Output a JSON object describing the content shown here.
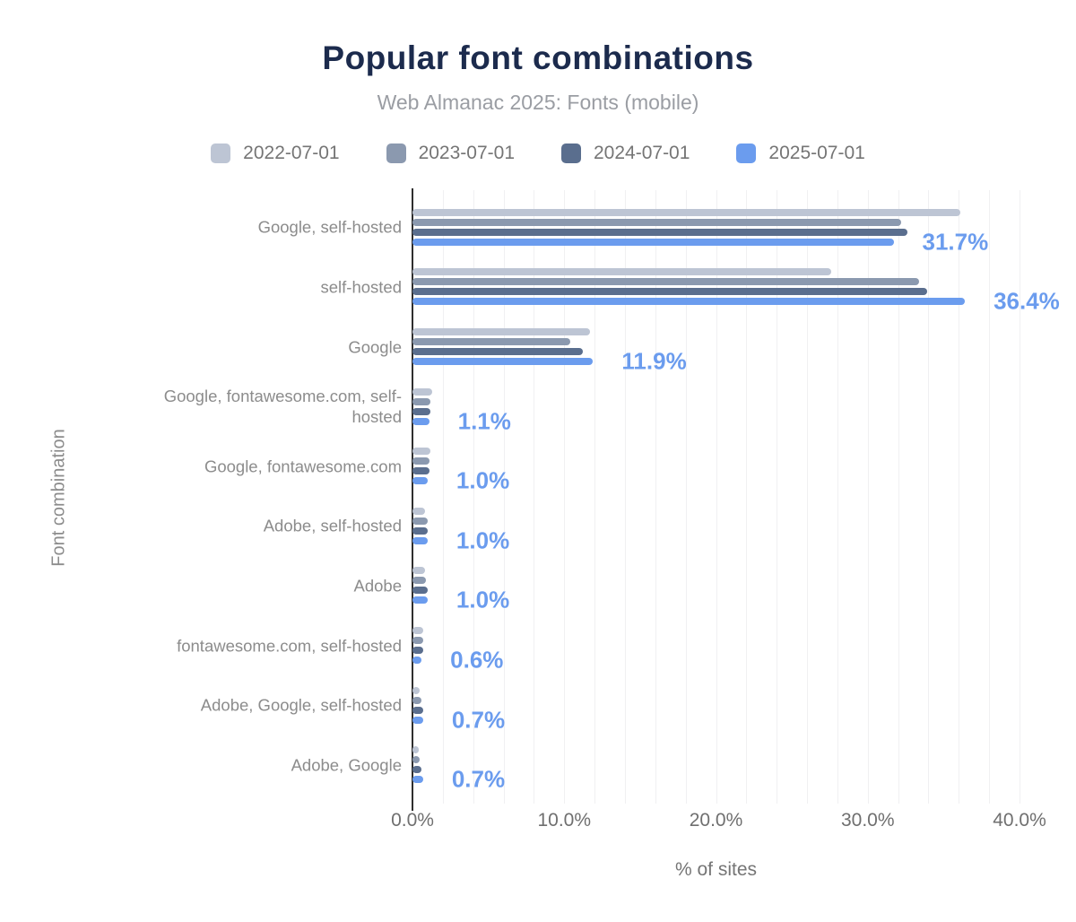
{
  "title": "Popular font combinations",
  "subtitle": "Web Almanac 2025: Fonts (mobile)",
  "colors": {
    "title_text": "#1c2b4d",
    "subtitle_text": "#9a9da3",
    "axis_text": "#757575",
    "category_text": "#8c8c8c",
    "data_label_blue": "#6b9cee",
    "axis_line": "#2e2e2e",
    "gridline": "#f0f0f2"
  },
  "chart_data": {
    "type": "bar",
    "orientation": "horizontal",
    "title": "Popular font combinations",
    "subtitle": "Web Almanac 2025: Fonts (mobile)",
    "xlabel": "% of sites",
    "ylabel": "Font combination",
    "xlim": [
      0,
      40
    ],
    "x_tick_values": [
      0,
      10,
      20,
      30,
      40
    ],
    "x_tick_labels": [
      "0.0%",
      "10.0%",
      "20.0%",
      "30.0%",
      "40.0%"
    ],
    "grid": "vertical lines every 2%",
    "legend_position": "top",
    "categories": [
      "Google, self-hosted",
      "self-hosted",
      "Google",
      "Google, fontawesome.com, self-hosted",
      "Google, fontawesome.com",
      "Adobe, self-hosted",
      "Adobe",
      "fontawesome.com, self-hosted",
      "Adobe, Google, self-hosted",
      "Adobe, Google"
    ],
    "series": [
      {
        "name": "2022-07-01",
        "color": "#bdc5d4",
        "values": [
          36.1,
          27.6,
          11.7,
          1.3,
          1.2,
          0.8,
          0.8,
          0.7,
          0.5,
          0.4
        ]
      },
      {
        "name": "2023-07-01",
        "color": "#8b99af",
        "values": [
          32.2,
          33.4,
          10.4,
          1.2,
          1.1,
          1.0,
          0.9,
          0.7,
          0.6,
          0.5
        ]
      },
      {
        "name": "2024-07-01",
        "color": "#5a6e8e",
        "values": [
          32.6,
          33.9,
          11.2,
          1.2,
          1.1,
          1.0,
          1.0,
          0.7,
          0.7,
          0.6
        ]
      },
      {
        "name": "2025-07-01",
        "color": "#6b9cee",
        "values": [
          31.7,
          36.4,
          11.9,
          1.1,
          1.0,
          1.0,
          1.0,
          0.6,
          0.7,
          0.7
        ],
        "data_labels": [
          "31.7%",
          "36.4%",
          "11.9%",
          "1.1%",
          "1.0%",
          "1.0%",
          "1.0%",
          "0.6%",
          "0.7%",
          "0.7%"
        ]
      }
    ]
  }
}
